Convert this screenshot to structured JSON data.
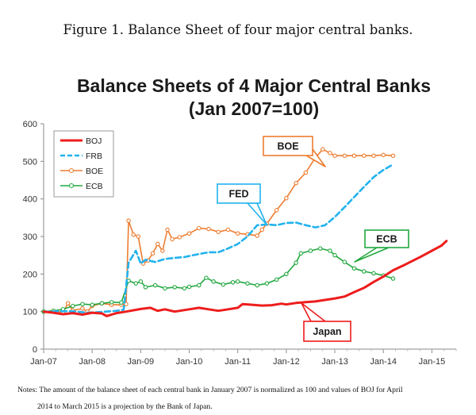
{
  "caption": "Figure 1. Balance Sheet of four major central banks.",
  "notes": {
    "line1": "Notes: The amount of the balance sheet of each central bank in January 2007 is normalized as 100 and values of BOJ for April",
    "line2": "2014 to March 2015 is a projection by the Bank of Japan."
  },
  "chart_data": {
    "type": "line",
    "title_line1": "Balance Sheets of 4 Major Central Banks",
    "title_line2": "(Jan 2007=100)",
    "xlabel": "",
    "ylabel": "",
    "ylim": [
      0,
      600
    ],
    "yticks": [
      0,
      100,
      200,
      300,
      400,
      500,
      600
    ],
    "xlim": [
      2007.0,
      2015.5
    ],
    "xticks": [
      {
        "value": 2007.0,
        "label": "Jan-07"
      },
      {
        "value": 2008.0,
        "label": "Jan-08"
      },
      {
        "value": 2009.0,
        "label": "Jan-09"
      },
      {
        "value": 2010.0,
        "label": "Jan-10"
      },
      {
        "value": 2011.0,
        "label": "Jan-11"
      },
      {
        "value": 2012.0,
        "label": "Jan-12"
      },
      {
        "value": 2013.0,
        "label": "Jan-13"
      },
      {
        "value": 2014.0,
        "label": "Jan-14"
      },
      {
        "value": 2015.0,
        "label": "Jan-15"
      }
    ],
    "grid": false,
    "legend_position": "top-left",
    "series": [
      {
        "name": "BOJ",
        "color": "#ee1c1c",
        "style": "solid",
        "points": [
          [
            2007.0,
            100
          ],
          [
            2007.2,
            97
          ],
          [
            2007.4,
            93
          ],
          [
            2007.6,
            96
          ],
          [
            2007.8,
            92
          ],
          [
            2008.0,
            97
          ],
          [
            2008.2,
            95
          ],
          [
            2008.3,
            88
          ],
          [
            2008.5,
            96
          ],
          [
            2008.7,
            100
          ],
          [
            2009.0,
            107
          ],
          [
            2009.2,
            110
          ],
          [
            2009.35,
            102
          ],
          [
            2009.5,
            106
          ],
          [
            2009.7,
            100
          ],
          [
            2010.0,
            106
          ],
          [
            2010.2,
            110
          ],
          [
            2010.4,
            106
          ],
          [
            2010.6,
            102
          ],
          [
            2010.8,
            106
          ],
          [
            2011.0,
            110
          ],
          [
            2011.1,
            120
          ],
          [
            2011.3,
            118
          ],
          [
            2011.5,
            116
          ],
          [
            2011.7,
            117
          ],
          [
            2011.9,
            121
          ],
          [
            2012.0,
            119
          ],
          [
            2012.2,
            123
          ],
          [
            2012.4,
            125
          ],
          [
            2012.6,
            127
          ],
          [
            2012.8,
            131
          ],
          [
            2013.0,
            135
          ],
          [
            2013.2,
            140
          ],
          [
            2013.4,
            152
          ],
          [
            2013.6,
            163
          ],
          [
            2013.8,
            179
          ],
          [
            2014.0,
            193
          ],
          [
            2014.2,
            210
          ],
          [
            2014.4,
            222
          ],
          [
            2014.6,
            235
          ],
          [
            2014.8,
            248
          ],
          [
            2015.0,
            262
          ],
          [
            2015.2,
            276
          ],
          [
            2015.3,
            288
          ]
        ]
      },
      {
        "name": "FRB",
        "color": "#22b2ee",
        "style": "dashed",
        "points": [
          [
            2007.0,
            100
          ],
          [
            2007.3,
            101
          ],
          [
            2007.6,
            101
          ],
          [
            2007.9,
            97
          ],
          [
            2008.2,
            99
          ],
          [
            2008.5,
            102
          ],
          [
            2008.65,
            105
          ],
          [
            2008.75,
            230
          ],
          [
            2008.9,
            262
          ],
          [
            2009.0,
            228
          ],
          [
            2009.1,
            238
          ],
          [
            2009.3,
            232
          ],
          [
            2009.5,
            240
          ],
          [
            2009.7,
            243
          ],
          [
            2009.9,
            245
          ],
          [
            2010.0,
            248
          ],
          [
            2010.2,
            253
          ],
          [
            2010.4,
            258
          ],
          [
            2010.6,
            258
          ],
          [
            2010.8,
            268
          ],
          [
            2011.0,
            280
          ],
          [
            2011.2,
            300
          ],
          [
            2011.4,
            330
          ],
          [
            2011.6,
            332
          ],
          [
            2011.8,
            330
          ],
          [
            2012.0,
            336
          ],
          [
            2012.2,
            337
          ],
          [
            2012.4,
            330
          ],
          [
            2012.6,
            324
          ],
          [
            2012.8,
            330
          ],
          [
            2013.0,
            352
          ],
          [
            2013.2,
            378
          ],
          [
            2013.4,
            405
          ],
          [
            2013.6,
            432
          ],
          [
            2013.8,
            458
          ],
          [
            2014.0,
            477
          ],
          [
            2014.2,
            492
          ]
        ]
      },
      {
        "name": "BOE",
        "color": "#ed7d31",
        "style": "solid-marker",
        "points": [
          [
            2007.0,
            100
          ],
          [
            2007.2,
            102
          ],
          [
            2007.4,
            98
          ],
          [
            2007.5,
            122
          ],
          [
            2007.6,
            103
          ],
          [
            2007.8,
            108
          ],
          [
            2007.9,
            100
          ],
          [
            2008.0,
            115
          ],
          [
            2008.2,
            122
          ],
          [
            2008.4,
            118
          ],
          [
            2008.6,
            118
          ],
          [
            2008.7,
            120
          ],
          [
            2008.75,
            342
          ],
          [
            2008.85,
            305
          ],
          [
            2008.95,
            300
          ],
          [
            2009.05,
            228
          ],
          [
            2009.15,
            236
          ],
          [
            2009.25,
            255
          ],
          [
            2009.35,
            280
          ],
          [
            2009.45,
            262
          ],
          [
            2009.55,
            318
          ],
          [
            2009.65,
            293
          ],
          [
            2009.8,
            298
          ],
          [
            2010.0,
            308
          ],
          [
            2010.2,
            322
          ],
          [
            2010.4,
            320
          ],
          [
            2010.6,
            312
          ],
          [
            2010.8,
            318
          ],
          [
            2011.0,
            308
          ],
          [
            2011.2,
            306
          ],
          [
            2011.4,
            302
          ],
          [
            2011.5,
            318
          ],
          [
            2011.6,
            334
          ],
          [
            2011.8,
            370
          ],
          [
            2012.0,
            402
          ],
          [
            2012.2,
            442
          ],
          [
            2012.4,
            470
          ],
          [
            2012.6,
            510
          ],
          [
            2012.75,
            532
          ],
          [
            2012.9,
            522
          ],
          [
            2013.0,
            515
          ],
          [
            2013.2,
            515
          ],
          [
            2013.4,
            515
          ],
          [
            2013.6,
            515
          ],
          [
            2013.8,
            515
          ],
          [
            2014.0,
            517
          ],
          [
            2014.2,
            515
          ]
        ]
      },
      {
        "name": "ECB",
        "color": "#22a840",
        "style": "solid-marker",
        "points": [
          [
            2007.0,
            100
          ],
          [
            2007.2,
            102
          ],
          [
            2007.4,
            106
          ],
          [
            2007.6,
            115
          ],
          [
            2007.8,
            120
          ],
          [
            2008.0,
            118
          ],
          [
            2008.2,
            122
          ],
          [
            2008.4,
            125
          ],
          [
            2008.6,
            124
          ],
          [
            2008.75,
            182
          ],
          [
            2008.9,
            175
          ],
          [
            2009.0,
            180
          ],
          [
            2009.1,
            165
          ],
          [
            2009.3,
            170
          ],
          [
            2009.5,
            162
          ],
          [
            2009.7,
            165
          ],
          [
            2009.9,
            162
          ],
          [
            2010.0,
            166
          ],
          [
            2010.2,
            170
          ],
          [
            2010.35,
            190
          ],
          [
            2010.5,
            180
          ],
          [
            2010.7,
            172
          ],
          [
            2010.9,
            178
          ],
          [
            2011.0,
            180
          ],
          [
            2011.2,
            175
          ],
          [
            2011.4,
            170
          ],
          [
            2011.6,
            175
          ],
          [
            2011.8,
            185
          ],
          [
            2012.0,
            200
          ],
          [
            2012.2,
            230
          ],
          [
            2012.3,
            255
          ],
          [
            2012.5,
            262
          ],
          [
            2012.7,
            268
          ],
          [
            2012.9,
            262
          ],
          [
            2013.0,
            250
          ],
          [
            2013.2,
            232
          ],
          [
            2013.4,
            215
          ],
          [
            2013.6,
            207
          ],
          [
            2013.8,
            202
          ],
          [
            2014.0,
            196
          ],
          [
            2014.2,
            188
          ]
        ]
      }
    ],
    "annotations": [
      {
        "text": "BOE",
        "color": "#ed7d31"
      },
      {
        "text": "FED",
        "color": "#22b2ee"
      },
      {
        "text": "ECB",
        "color": "#22a840"
      },
      {
        "text": "Japan",
        "color": "#ee1c1c"
      }
    ]
  }
}
